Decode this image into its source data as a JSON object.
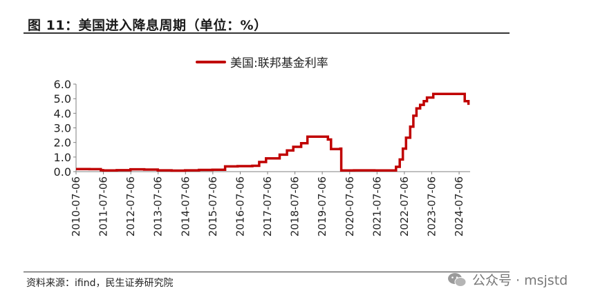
{
  "figure": {
    "title": "图 11：美国进入降息周期（单位：%）",
    "source": "资料来源：ifind，民生证券研究院",
    "watermark": "公众号 · msjstd"
  },
  "colors": {
    "series": "#c00000",
    "axis": "#7f7f7f",
    "text": "#222222"
  },
  "chart_data": {
    "type": "line",
    "title": "",
    "xlabel": "",
    "ylabel": "",
    "legend_position": "top-center",
    "grid": false,
    "ylim": [
      0,
      6
    ],
    "yticks": [
      "0.0",
      "1.0",
      "2.0",
      "3.0",
      "4.0",
      "5.0",
      "6.0"
    ],
    "xlim": [
      "2010-07-06",
      "2024-11-30"
    ],
    "xticks": [
      "2010-07-06",
      "2011-07-06",
      "2012-07-06",
      "2013-07-06",
      "2014-07-06",
      "2015-07-06",
      "2016-07-06",
      "2017-07-06",
      "2018-07-06",
      "2019-07-06",
      "2020-07-06",
      "2021-07-06",
      "2022-07-06",
      "2023-07-06",
      "2024-07-06"
    ],
    "series": [
      {
        "name": "美国:联邦基金利率",
        "x": [
          "2010-07-06",
          "2011-01-01",
          "2011-06-01",
          "2011-07-01",
          "2012-01-01",
          "2012-07-01",
          "2013-01-01",
          "2013-07-01",
          "2014-01-01",
          "2014-07-01",
          "2015-01-01",
          "2015-07-01",
          "2015-12-01",
          "2015-12-17",
          "2016-06-01",
          "2016-12-15",
          "2017-03-16",
          "2017-06-15",
          "2017-12-14",
          "2018-03-22",
          "2018-06-14",
          "2018-09-27",
          "2018-12-20",
          "2019-06-01",
          "2019-08-01",
          "2019-09-19",
          "2019-10-31",
          "2020-03-04",
          "2020-03-16",
          "2020-09-01",
          "2021-06-01",
          "2022-01-01",
          "2022-03-17",
          "2022-05-05",
          "2022-06-16",
          "2022-07-28",
          "2022-09-22",
          "2022-11-03",
          "2022-12-15",
          "2023-02-02",
          "2023-03-23",
          "2023-05-04",
          "2023-07-27",
          "2024-01-01",
          "2024-09-01",
          "2024-09-19",
          "2024-11-08"
        ],
        "y": [
          0.18,
          0.17,
          0.1,
          0.08,
          0.1,
          0.16,
          0.14,
          0.09,
          0.07,
          0.09,
          0.12,
          0.13,
          0.13,
          0.36,
          0.38,
          0.4,
          0.66,
          0.91,
          1.16,
          1.45,
          1.7,
          1.95,
          2.4,
          2.4,
          2.4,
          2.2,
          1.55,
          1.58,
          0.08,
          0.09,
          0.08,
          0.08,
          0.33,
          0.83,
          1.58,
          2.33,
          3.08,
          3.83,
          4.33,
          4.58,
          4.83,
          5.08,
          5.33,
          5.33,
          5.33,
          4.83,
          4.58
        ]
      }
    ]
  }
}
